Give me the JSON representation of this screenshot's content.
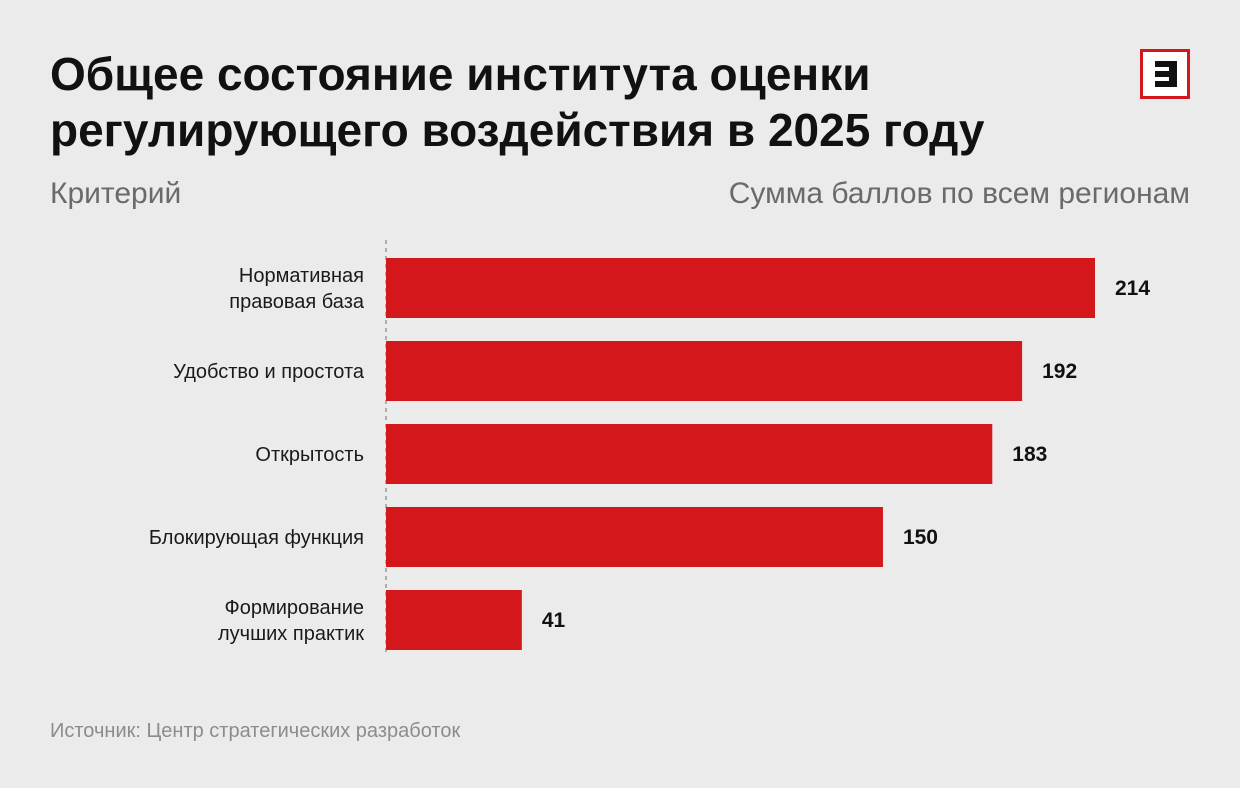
{
  "title": "Общее состояние института оценки регулирующего воздействия в 2025 году",
  "logo": {
    "icon": "e-logo-icon",
    "color": "#d4171b"
  },
  "headers": {
    "left": "Критерий",
    "right": "Сумма баллов по всем регионам"
  },
  "chart_data": {
    "type": "bar",
    "orientation": "horizontal",
    "categories": [
      [
        "Нормативная",
        "правовая база"
      ],
      [
        "Удобство и простота"
      ],
      [
        "Открытость"
      ],
      [
        "Блокирующая функция"
      ],
      [
        "Формирование",
        "лучших практик"
      ]
    ],
    "values": [
      214,
      192,
      183,
      150,
      41
    ],
    "value_labels": [
      "214",
      "192",
      "183",
      "150",
      "41"
    ],
    "xlim": [
      0,
      214
    ],
    "bar_color": "#d4171b",
    "grid": false,
    "axis_line": "dashed"
  },
  "source": "Источник: Центр стратегических разработок"
}
